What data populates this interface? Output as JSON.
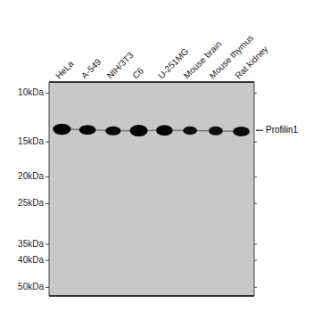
{
  "chart_data": {
    "type": "gel",
    "categories": [
      "HeLa",
      "A-549",
      "NIH/3T3",
      "C6",
      "U-251MG",
      "Mouse brain",
      "Mouse thymus",
      "Rat kidney"
    ],
    "values": [
      1.13,
      1.132,
      1.136,
      1.135,
      1.134,
      1.135,
      1.136,
      1.138
    ],
    "intensity": [
      0.97,
      0.88,
      0.8,
      0.95,
      0.92,
      0.72,
      0.75,
      0.82
    ],
    "band_widths": [
      0.7,
      0.65,
      0.6,
      0.7,
      0.65,
      0.55,
      0.55,
      0.65
    ],
    "band_heights": [
      0.04,
      0.035,
      0.032,
      0.042,
      0.038,
      0.03,
      0.032,
      0.035
    ],
    "color": "#c8c8c8",
    "ylim": [
      1.73,
      0.96
    ],
    "yticks": [
      {
        "value": 1.699,
        "label": "50kDa"
      },
      {
        "value": 1.602,
        "label": "40kDa"
      },
      {
        "value": 1.544,
        "label": "35kDa"
      },
      {
        "value": 1.398,
        "label": "25kDa"
      },
      {
        "value": 1.301,
        "label": "20kDa"
      },
      {
        "value": 1.176,
        "label": "15kDa"
      },
      {
        "value": 1.0,
        "label": "10kDa"
      }
    ],
    "annotations": [
      {
        "text": "Profilin1",
        "y": 1.134
      }
    ]
  }
}
